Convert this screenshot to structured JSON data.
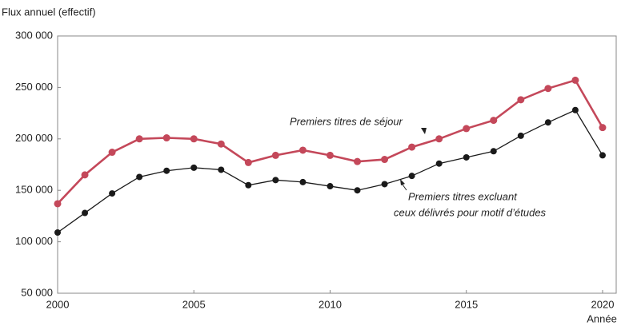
{
  "chart_data": {
    "type": "line",
    "ylabel": "Flux annuel (effectif)",
    "xlabel": "Année",
    "x": [
      2000,
      2001,
      2002,
      2003,
      2004,
      2005,
      2006,
      2007,
      2008,
      2009,
      2010,
      2011,
      2012,
      2013,
      2014,
      2015,
      2016,
      2017,
      2018,
      2019,
      2020
    ],
    "series": [
      {
        "color": "#c4485a",
        "values": [
          137000,
          165000,
          187000,
          200000,
          201000,
          200000,
          195000,
          177000,
          184000,
          189000,
          184000,
          178000,
          180000,
          192000,
          200000,
          210000,
          218000,
          238000,
          249000,
          257000,
          211000
        ]
      },
      {
        "color": "#1a1a1a",
        "values": [
          109000,
          128000,
          147000,
          163000,
          169000,
          172000,
          170000,
          155000,
          160000,
          158000,
          154000,
          150000,
          156000,
          164000,
          176000,
          182000,
          188000,
          203000,
          216000,
          228000,
          184000
        ]
      }
    ],
    "annotations": [
      {
        "lines": [
          "Premiers titres de séjour"
        ]
      },
      {
        "lines": [
          "Premiers titres excluant",
          "ceux délivrés pour motif d’études"
        ]
      }
    ],
    "xlim": [
      2000,
      2020.5
    ],
    "xticks": [
      2000,
      2005,
      2010,
      2015,
      2020
    ],
    "ylim": [
      50000,
      300000
    ],
    "yticks": [
      {
        "value": 50000,
        "label": "50 000"
      },
      {
        "value": 100000,
        "label": "100 000"
      },
      {
        "value": 150000,
        "label": "150 000"
      },
      {
        "value": 200000,
        "label": "200 000"
      },
      {
        "value": 250000,
        "label": "250 000"
      },
      {
        "value": 300000,
        "label": "300 000"
      }
    ],
    "grid": false
  }
}
